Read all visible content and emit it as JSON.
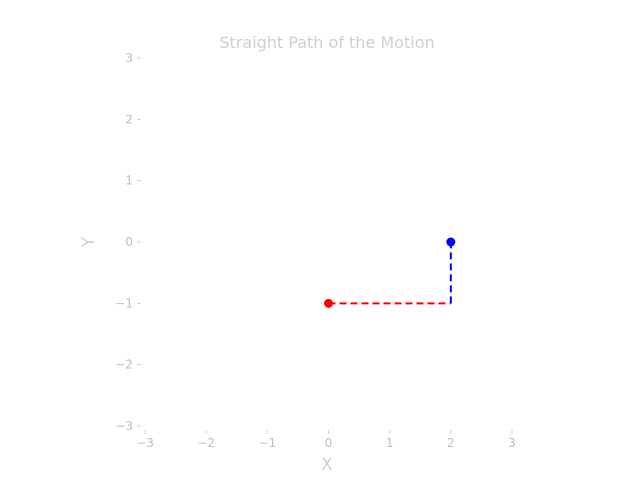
{
  "chart_data": {
    "type": "line",
    "title": "Straight Path of the Motion",
    "xlabel": "X",
    "ylabel": "Y",
    "xlim": [
      -3,
      3
    ],
    "ylim": [
      -3,
      3
    ],
    "x_ticks": [
      -3,
      -2,
      -1,
      0,
      1,
      2,
      3
    ],
    "y_ticks": [
      -3,
      -2,
      -1,
      0,
      1,
      2,
      3
    ],
    "x_tick_labels": [
      "−3",
      "−2",
      "−1",
      "0",
      "1",
      "2",
      "3"
    ],
    "y_tick_labels": [
      "−3",
      "−2",
      "−1",
      "0",
      "1",
      "2",
      "3"
    ],
    "grid": false,
    "series": [
      {
        "color": "#ff0000",
        "style": "dashed",
        "points": [
          {
            "x": 0,
            "y": -1
          },
          {
            "x": 2,
            "y": -1
          }
        ],
        "start_marker": true
      },
      {
        "color": "#0000ff",
        "style": "dashed",
        "points": [
          {
            "x": 2,
            "y": -1
          },
          {
            "x": 2,
            "y": 0
          }
        ],
        "end_marker": true
      }
    ]
  }
}
